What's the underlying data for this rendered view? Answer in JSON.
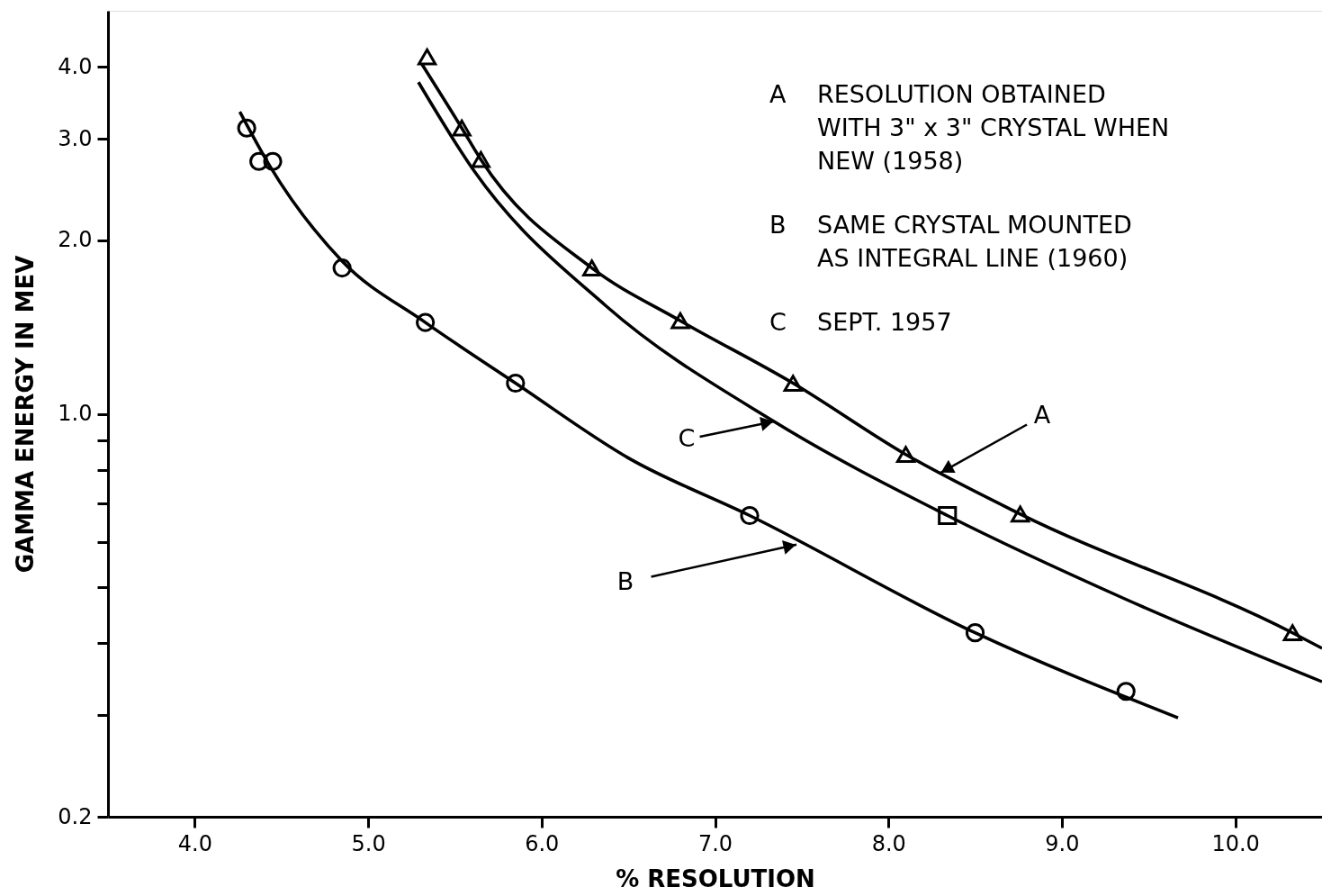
{
  "chart_data": {
    "type": "scatter",
    "xlabel": "% RESOLUTION",
    "ylabel": "GAMMA ENERGY IN MEV",
    "log": "y",
    "grid": false,
    "xlim": [
      3.5,
      10.5
    ],
    "xticks": [
      {
        "value": 4,
        "label": "4.0"
      },
      {
        "value": 5,
        "label": "5.0"
      },
      {
        "value": 6,
        "label": "6.0"
      },
      {
        "value": 7,
        "label": "7.0"
      },
      {
        "value": 8,
        "label": "8.0"
      },
      {
        "value": 9,
        "label": "9.0"
      },
      {
        "value": 10,
        "label": "10.0"
      }
    ],
    "ylim": [
      0.2,
      5.0
    ],
    "yticks": [
      0.2,
      {
        "value": 0.3,
        "label": null
      },
      {
        "value": 0.4,
        "label": null
      },
      {
        "value": 0.5,
        "label": null
      },
      {
        "value": 0.6,
        "label": null
      },
      {
        "value": 0.7,
        "label": null
      },
      {
        "value": 0.8,
        "label": null
      },
      {
        "value": 0.9,
        "label": null
      },
      {
        "value": 1,
        "label": "1.0"
      },
      {
        "value": 2,
        "label": "2.0"
      },
      {
        "value": 3,
        "label": "3.0"
      },
      {
        "value": 4,
        "label": "4.0"
      }
    ],
    "series": [
      {
        "type": "line",
        "color": "#000000",
        "line_style": "solid",
        "x": [
          5.31,
          5.54,
          5.65,
          6.29,
          6.8,
          7.45,
          8.1,
          8.76,
          10.33,
          10.5
        ],
        "values": [
          4.04,
          3.13,
          2.76,
          1.79,
          1.45,
          1.13,
          0.85,
          0.67,
          0.417,
          0.392
        ]
      },
      {
        "type": "line",
        "color": "#000000",
        "line_style": "solid",
        "x": [
          5.29,
          5.61,
          6.37,
          7.34,
          8.34,
          9.36,
          10.5
        ],
        "values": [
          3.76,
          2.64,
          1.54,
          0.97,
          0.666,
          0.478,
          0.343
        ]
      },
      {
        "type": "line",
        "color": "#000000",
        "line_style": "solid",
        "x": [
          4.26,
          4.43,
          4.85,
          5.33,
          5.85,
          6.51,
          7.2,
          8.5,
          9.67
        ],
        "values": [
          3.34,
          2.7,
          1.84,
          1.44,
          1.13,
          0.835,
          0.666,
          0.417,
          0.297
        ]
      },
      {
        "marker": "triangle",
        "color": "#000000",
        "x": [
          5.34,
          5.54,
          5.65,
          6.29,
          6.8,
          7.45,
          8.1,
          8.76,
          10.33
        ],
        "values": [
          4.16,
          3.13,
          2.76,
          1.79,
          1.45,
          1.13,
          0.85,
          0.67,
          0.417
        ]
      },
      {
        "marker": "circle",
        "color": "#000000",
        "x": [
          4.3,
          4.37,
          4.45,
          4.85,
          5.33,
          5.85,
          7.2,
          8.5,
          9.37
        ],
        "values": [
          3.13,
          2.74,
          2.74,
          1.79,
          1.44,
          1.13,
          0.666,
          0.417,
          0.33
        ]
      },
      {
        "marker": "square",
        "color": "#000000",
        "x": [
          8.34
        ],
        "values": [
          0.666
        ]
      }
    ],
    "annotations": [
      "A RESOLUTION OBTAINED\nWITH 3\" x 3\" CRYSTAL WHEN\nNEW (1958)",
      "B SAME CRYSTAL MOUNTED\nAS INTEGRAL LINE (1960)",
      "C SEPT. 1957",
      {
        "text": "A",
        "x": 8.3,
        "y": 0.79
      },
      {
        "text": "C",
        "x": 7.34,
        "y": 0.97
      },
      {
        "text": "B",
        "x": 7.47,
        "y": 0.593
      }
    ]
  }
}
